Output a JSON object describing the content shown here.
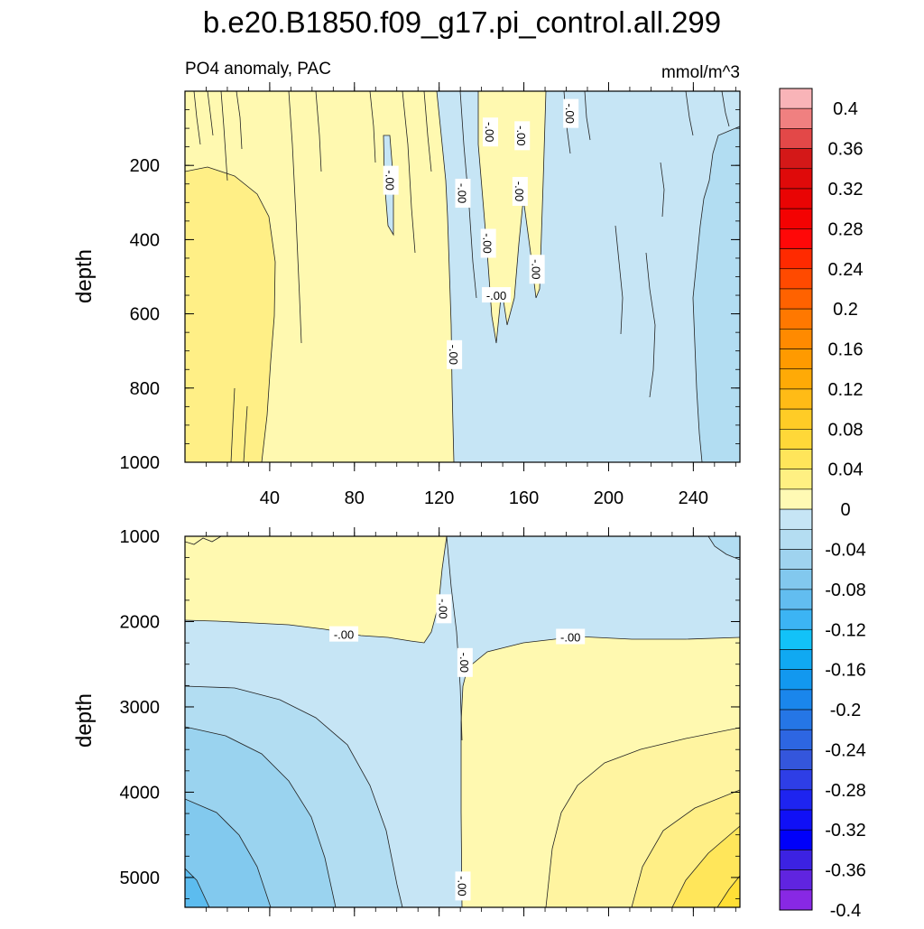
{
  "title": "b.e20.B1850.f09_g17.pi_control.all.299",
  "subtitle_left": "PO4 anomaly, PAC",
  "subtitle_right": "mmol/m^3",
  "contour_label": "-.00",
  "colors": {
    "yellow_1": "#fff9b0",
    "yellow_2": "#fff4a0",
    "yellow_3": "#ffef86",
    "yellow_4": "#ffe65a",
    "yellow_5": "#ffdf36",
    "blue_1": "#c6e5f5",
    "blue_2": "#b2ddf2",
    "blue_3": "#9ad3ef",
    "blue_4": "#82c9ee",
    "blue_5": "#5cbcef",
    "line": "#222222"
  },
  "chart_data": [
    {
      "type": "heatmap",
      "panel": "upper",
      "ylabel": "depth",
      "xlabel": "",
      "xlim": [
        0,
        262
      ],
      "ylim": [
        0,
        1000
      ],
      "y_inverted": true,
      "xticks": [
        40,
        80,
        120,
        160,
        200,
        240
      ],
      "yticks": [
        200,
        400,
        600,
        800,
        1000
      ],
      "contour_labels": [
        {
          "text": "-.00",
          "x": 97,
          "y": 240,
          "vertical": true
        },
        {
          "text": "-.00",
          "x": 131,
          "y": 275,
          "vertical": true
        },
        {
          "text": "-.00",
          "x": 144,
          "y": 110,
          "vertical": true
        },
        {
          "text": "-.00",
          "x": 159,
          "y": 120,
          "vertical": true
        },
        {
          "text": "-.00",
          "x": 158,
          "y": 270,
          "vertical": true
        },
        {
          "text": "-.00",
          "x": 143,
          "y": 410,
          "vertical": true
        },
        {
          "text": "-.00",
          "x": 166,
          "y": 480,
          "vertical": true
        },
        {
          "text": "-.00",
          "x": 147,
          "y": 550,
          "vertical": false
        },
        {
          "text": "-.00",
          "x": 127,
          "y": 710,
          "vertical": true
        },
        {
          "text": "-.00",
          "x": 182,
          "y": 60,
          "vertical": true
        }
      ]
    },
    {
      "type": "heatmap",
      "panel": "lower",
      "ylabel": "depth",
      "xlabel": "",
      "xlim": [
        0,
        262
      ],
      "ylim": [
        1000,
        5350
      ],
      "y_inverted": true,
      "xticks": [
        40,
        80,
        120,
        160,
        200,
        240
      ],
      "yticks": [
        1000,
        2000,
        3000,
        4000,
        5000
      ],
      "contour_labels": [
        {
          "text": "-.00",
          "x": 122,
          "y": 1850,
          "vertical": true
        },
        {
          "text": "-.00",
          "x": 75,
          "y": 2150,
          "vertical": false
        },
        {
          "text": "-.00",
          "x": 182,
          "y": 2180,
          "vertical": false
        },
        {
          "text": "-.00",
          "x": 132,
          "y": 2480,
          "vertical": true
        },
        {
          "text": "-.00",
          "x": 131,
          "y": 5100,
          "vertical": true
        }
      ]
    }
  ],
  "colorbar": {
    "labels": [
      "0.4",
      "0.36",
      "0.32",
      "0.28",
      "0.24",
      "0.2",
      "0.16",
      "0.12",
      "0.08",
      "0.04",
      "0",
      "-0.04",
      "-0.08",
      "-0.12",
      "-0.16",
      "-0.2",
      "-0.24",
      "-0.28",
      "-0.32",
      "-0.36",
      "-0.4"
    ],
    "boxes": [
      "#f9b4b8",
      "#f08080",
      "#e34848",
      "#d41818",
      "#df0a0a",
      "#e90404",
      "#f40202",
      "#ff0808",
      "#ff2a00",
      "#ff4a00",
      "#ff6200",
      "#ff7800",
      "#ff8a00",
      "#ff9a00",
      "#ffaa06",
      "#ffbb16",
      "#ffcc26",
      "#ffd838",
      "#ffe55a",
      "#fff082",
      "#fffab4",
      "#c6e5f5",
      "#b4ddf2",
      "#9fd3ef",
      "#82c8ee",
      "#62bdf0",
      "#3cb4f4",
      "#12c2f8",
      "#10a9f2",
      "#1298ef",
      "#1a86ec",
      "#2576e6",
      "#2d66e2",
      "#3456dc",
      "#2e3ee6",
      "#1e24f0",
      "#1010f6",
      "#0000fa",
      "#3c22e2",
      "#6024e0",
      "#8828e4"
    ]
  }
}
